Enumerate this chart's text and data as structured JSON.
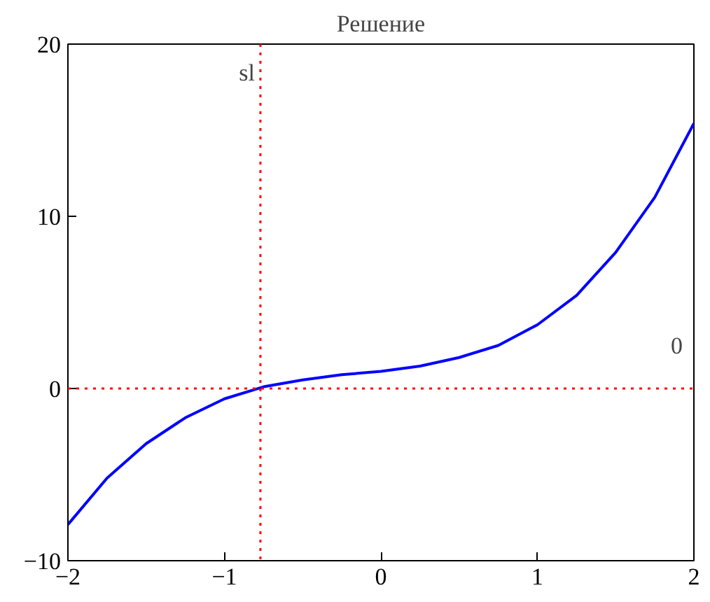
{
  "chart_data": {
    "type": "line",
    "title": "Решение",
    "x": [
      -2,
      -1.75,
      -1.5,
      -1.25,
      -1,
      -0.75,
      -0.5,
      -0.25,
      0,
      0.25,
      0.5,
      0.75,
      1,
      1.25,
      1.5,
      1.75,
      2
    ],
    "series": [
      {
        "color": "#0000ff",
        "values": [
          -7.9,
          -5.2,
          -3.2,
          -1.7,
          -0.6,
          0.1,
          0.5,
          0.8,
          1.0,
          1.3,
          1.8,
          2.5,
          3.7,
          5.4,
          7.9,
          11.1,
          15.4
        ]
      }
    ],
    "xlim": [
      -2,
      2
    ],
    "ylim": [
      -10,
      20
    ],
    "xticks": [
      {
        "value": -2,
        "label": "−2"
      },
      {
        "value": -1,
        "label": "−1"
      },
      0,
      1,
      2
    ],
    "yticks": [
      {
        "value": -10,
        "label": "−10"
      },
      0,
      10,
      20
    ],
    "ref_lines": [
      {
        "axis": "x",
        "value": -0.77,
        "label": "sl",
        "color": "#ff0000",
        "line_style": "dotted"
      },
      {
        "axis": "y",
        "value": 0,
        "label": "0",
        "color": "#ff0000",
        "line_style": "dotted"
      }
    ],
    "grid": false,
    "marker": "none",
    "line_style": "solid"
  }
}
